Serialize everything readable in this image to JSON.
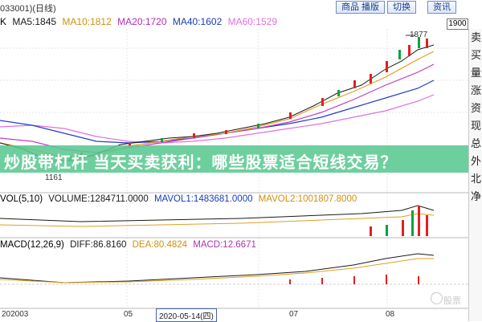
{
  "header": {
    "code": "033001)",
    "period": "(日线)",
    "buttons": [
      "商品 播版",
      "切换",
      "资讯"
    ]
  },
  "ma": {
    "k": "K",
    "ma5": "MA5:1845",
    "ma10": "MA10:1812",
    "ma20": "MA20:1720",
    "ma40": "MA40:1602",
    "ma60": "MA60:1529",
    "box": "1900",
    "high_label": "1877",
    "low_label": "1161"
  },
  "right_panel": [
    "卖",
    "买",
    "量",
    "涨",
    "资",
    "现",
    "总",
    "外",
    "北",
    "净"
  ],
  "banner": "炒股带杠杆 当天买卖获利：哪些股票适合短线交易？",
  "volume": {
    "label": "VOL(5,10)",
    "vol": "VOLUME:1284711.0000",
    "mavol1": "MAVOL1:1483681.0000",
    "mavol2": "MAVOL2:1001807.8000"
  },
  "macd": {
    "label": "MACD(12,26,9)",
    "diff": "DIFF:86.8160",
    "dea": "DEA:80.4824",
    "macd": "MACD:12.6671"
  },
  "axis": {
    "start": "202003",
    "mid1": "05",
    "date": "2020-05-14(四)",
    "mid2": "07",
    "end": "08"
  },
  "watermark": "股票",
  "colors": {
    "ma5": "#1a1a1a",
    "ma10": "#e0a020",
    "ma20": "#c040c0",
    "ma40": "#2040c0",
    "ma60": "#e070e0",
    "up": "#e02020",
    "down": "#10a040",
    "banner": "#5ac891"
  }
}
